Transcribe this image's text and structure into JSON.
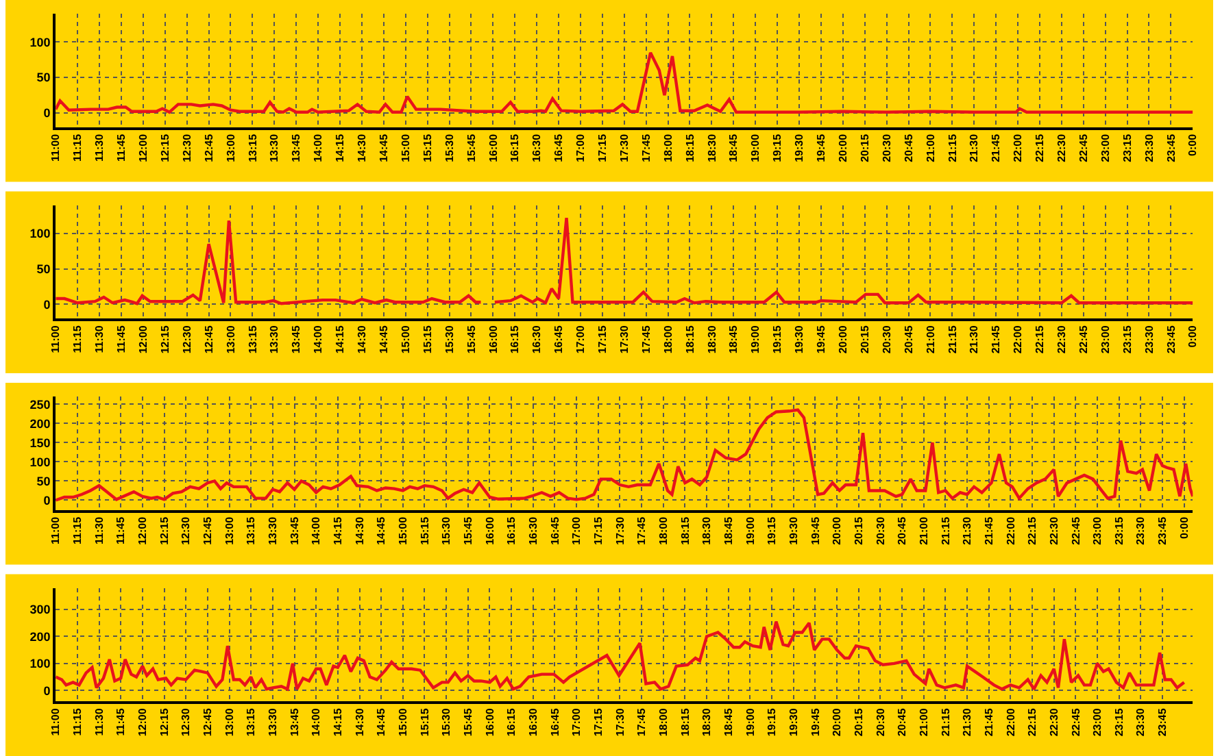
{
  "chart_data": [
    {
      "type": "line",
      "color": "#e8121c",
      "grid": true,
      "xlim": [
        11,
        24
      ],
      "ylim": [
        -20,
        140
      ],
      "yticks": [
        0,
        50,
        100
      ],
      "xticks": [
        {
          "value": 11,
          "label": "11:00"
        },
        {
          "value": 11.25,
          "label": "11:15"
        },
        {
          "value": 11.5,
          "label": "11:30"
        },
        {
          "value": 11.75,
          "label": "11:45"
        },
        {
          "value": 12,
          "label": "12:00"
        },
        {
          "value": 12.25,
          "label": "12:15"
        },
        {
          "value": 12.5,
          "label": "12:30"
        },
        {
          "value": 12.75,
          "label": "12:45"
        },
        {
          "value": 13,
          "label": "13:00"
        },
        {
          "value": 13.25,
          "label": "13:15"
        },
        {
          "value": 13.5,
          "label": "13:30"
        },
        {
          "value": 13.75,
          "label": "13:45"
        },
        {
          "value": 14,
          "label": "14:00"
        },
        {
          "value": 14.25,
          "label": "14:15"
        },
        {
          "value": 14.5,
          "label": "14:30"
        },
        {
          "value": 14.75,
          "label": "14:45"
        },
        {
          "value": 15,
          "label": "15:00"
        },
        {
          "value": 15.25,
          "label": "15:15"
        },
        {
          "value": 15.5,
          "label": "15:30"
        },
        {
          "value": 15.75,
          "label": "15:45"
        },
        {
          "value": 16,
          "label": "16:00"
        },
        {
          "value": 16.25,
          "label": "16:15"
        },
        {
          "value": 16.5,
          "label": "16:30"
        },
        {
          "value": 16.75,
          "label": "16:45"
        },
        {
          "value": 17,
          "label": "17:00"
        },
        {
          "value": 17.25,
          "label": "17:15"
        },
        {
          "value": 17.5,
          "label": "17:30"
        },
        {
          "value": 17.75,
          "label": "17:45"
        },
        {
          "value": 18,
          "label": "18:00"
        },
        {
          "value": 18.25,
          "label": "18:15"
        },
        {
          "value": 18.5,
          "label": "18:30"
        },
        {
          "value": 18.75,
          "label": "18:45"
        },
        {
          "value": 19,
          "label": "19:00"
        },
        {
          "value": 19.25,
          "label": "19:15"
        },
        {
          "value": 19.5,
          "label": "19:30"
        },
        {
          "value": 19.75,
          "label": "19:45"
        },
        {
          "value": 20,
          "label": "20:00"
        },
        {
          "value": 20.25,
          "label": "20:15"
        },
        {
          "value": 20.5,
          "label": "20:30"
        },
        {
          "value": 20.75,
          "label": "20:45"
        },
        {
          "value": 21,
          "label": "21:00"
        },
        {
          "value": 21.25,
          "label": "21:15"
        },
        {
          "value": 21.5,
          "label": "21:30"
        },
        {
          "value": 21.75,
          "label": "21:45"
        },
        {
          "value": 22,
          "label": "22:00"
        },
        {
          "value": 22.25,
          "label": "22:15"
        },
        {
          "value": 22.5,
          "label": "22:30"
        },
        {
          "value": 22.75,
          "label": "22:45"
        },
        {
          "value": 23,
          "label": "23:00"
        },
        {
          "value": 23.25,
          "label": "23:15"
        },
        {
          "value": 23.5,
          "label": "23:30"
        },
        {
          "value": 23.75,
          "label": "23:45"
        },
        {
          "value": 24,
          "label": "0:00"
        }
      ],
      "x": [
        11,
        11.05,
        11.15,
        11.4,
        11.6,
        11.7,
        11.8,
        11.87,
        12.15,
        12.22,
        12.3,
        12.4,
        12.55,
        12.65,
        12.8,
        12.9,
        13,
        13.1,
        13.38,
        13.45,
        13.53,
        13.6,
        13.67,
        13.75,
        13.88,
        13.93,
        14,
        14.35,
        14.45,
        14.55,
        14.7,
        14.77,
        14.85,
        14.95,
        15.02,
        15.12,
        15.4,
        15.65,
        15.8,
        16.1,
        16.2,
        16.28,
        16.45,
        16.55,
        16.6,
        16.68,
        16.78,
        17,
        17.38,
        17.48,
        17.57,
        17.65,
        17.8,
        17.9,
        17.96,
        18.05,
        18.14,
        18.3,
        18.45,
        18.6,
        18.7,
        18.78,
        19.5,
        20,
        20.5,
        21,
        21.5,
        21.98,
        22.02,
        22.1,
        23,
        24
      ],
      "values": [
        5,
        17,
        4,
        5,
        5,
        8,
        8,
        2,
        2,
        6,
        1,
        12,
        12,
        10,
        12,
        10,
        4,
        2,
        2,
        15,
        2,
        1,
        6,
        1,
        1,
        5,
        1,
        3,
        12,
        2,
        1,
        12,
        1,
        1,
        23,
        5,
        5,
        3,
        2,
        2,
        15,
        2,
        2,
        3,
        2,
        20,
        3,
        2,
        3,
        12,
        2,
        2,
        85,
        60,
        25,
        80,
        3,
        3,
        11,
        2,
        19,
        1,
        1,
        2,
        1,
        2,
        1,
        1,
        6,
        1,
        1,
        1
      ]
    },
    {
      "type": "line",
      "color": "#e8121c",
      "grid": true,
      "xlim": [
        11,
        24
      ],
      "ylim": [
        -20,
        140
      ],
      "yticks": [
        0,
        50,
        100
      ],
      "xticks": [
        {
          "value": 11,
          "label": "11:00"
        },
        {
          "value": 11.25,
          "label": "11:15"
        },
        {
          "value": 11.5,
          "label": "11:30"
        },
        {
          "value": 11.75,
          "label": "11:45"
        },
        {
          "value": 12,
          "label": "12:00"
        },
        {
          "value": 12.25,
          "label": "12:15"
        },
        {
          "value": 12.5,
          "label": "12:30"
        },
        {
          "value": 12.75,
          "label": "12:45"
        },
        {
          "value": 13,
          "label": "13:00"
        },
        {
          "value": 13.25,
          "label": "13:15"
        },
        {
          "value": 13.5,
          "label": "13:30"
        },
        {
          "value": 13.75,
          "label": "13:45"
        },
        {
          "value": 14,
          "label": "14:00"
        },
        {
          "value": 14.25,
          "label": "14:15"
        },
        {
          "value": 14.5,
          "label": "14:30"
        },
        {
          "value": 14.75,
          "label": "14:45"
        },
        {
          "value": 15,
          "label": "15:00"
        },
        {
          "value": 15.25,
          "label": "15:15"
        },
        {
          "value": 15.5,
          "label": "15:30"
        },
        {
          "value": 15.75,
          "label": "15:45"
        },
        {
          "value": 16,
          "label": "16:00"
        },
        {
          "value": 16.25,
          "label": "16:15"
        },
        {
          "value": 16.5,
          "label": "16:30"
        },
        {
          "value": 16.75,
          "label": "16:45"
        },
        {
          "value": 17,
          "label": "17:00"
        },
        {
          "value": 17.25,
          "label": "17:15"
        },
        {
          "value": 17.5,
          "label": "17:30"
        },
        {
          "value": 17.75,
          "label": "17:45"
        },
        {
          "value": 18,
          "label": "18:00"
        },
        {
          "value": 18.25,
          "label": "18:15"
        },
        {
          "value": 18.5,
          "label": "18:30"
        },
        {
          "value": 18.75,
          "label": "18:45"
        },
        {
          "value": 19,
          "label": "19:00"
        },
        {
          "value": 19.25,
          "label": "19:15"
        },
        {
          "value": 19.5,
          "label": "19:30"
        },
        {
          "value": 19.75,
          "label": "19:45"
        },
        {
          "value": 20,
          "label": "20:00"
        },
        {
          "value": 20.25,
          "label": "20:15"
        },
        {
          "value": 20.5,
          "label": "20:30"
        },
        {
          "value": 20.75,
          "label": "20:45"
        },
        {
          "value": 21,
          "label": "21:00"
        },
        {
          "value": 21.25,
          "label": "21:15"
        },
        {
          "value": 21.5,
          "label": "21:30"
        },
        {
          "value": 21.75,
          "label": "21:45"
        },
        {
          "value": 22,
          "label": "22:00"
        },
        {
          "value": 22.25,
          "label": "22:15"
        },
        {
          "value": 22.5,
          "label": "22:30"
        },
        {
          "value": 22.75,
          "label": "22:45"
        },
        {
          "value": 23,
          "label": "23:00"
        },
        {
          "value": 23.25,
          "label": "23:15"
        },
        {
          "value": 23.5,
          "label": "23:30"
        },
        {
          "value": 23.75,
          "label": "23:45"
        },
        {
          "value": 24,
          "label": "0:00"
        }
      ],
      "x": [
        11,
        11.1,
        11.25,
        11.45,
        11.55,
        11.65,
        11.79,
        11.88,
        11.93,
        11.99,
        12.08,
        12.45,
        12.57,
        12.65,
        12.75,
        12.92,
        12.98,
        13.06,
        13.4,
        13.49,
        13.58,
        14.05,
        14.2,
        14.4,
        14.5,
        14.65,
        14.78,
        14.88,
        15.2,
        15.3,
        15.45,
        15.62,
        15.72,
        15.8,
        15.86,
        15.87,
        16.01,
        16.02,
        16.2,
        16.32,
        16.45,
        16.51,
        16.6,
        16.67,
        16.75,
        16.84,
        16.91,
        17.6,
        17.72,
        17.82,
        18.1,
        18.19,
        18.3,
        18.43,
        18.6,
        19.1,
        19.24,
        19.33,
        19.7,
        19.75,
        20.15,
        20.26,
        20.4,
        20.48,
        20.75,
        20.86,
        20.95,
        21.5,
        22.5,
        22.61,
        22.7,
        24
      ],
      "values": [
        8,
        8,
        2,
        4,
        10,
        2,
        6,
        3,
        1,
        12,
        4,
        4,
        13,
        5,
        85,
        2,
        118,
        3,
        3,
        5,
        1,
        6,
        6,
        2,
        7,
        2,
        6,
        3,
        3,
        8,
        3,
        3,
        12,
        3,
        3,
        null,
        null,
        3,
        5,
        12,
        3,
        8,
        2,
        22,
        8,
        122,
        3,
        3,
        17,
        4,
        3,
        8,
        2,
        4,
        3,
        3,
        17,
        3,
        3,
        5,
        3,
        14,
        14,
        2,
        2,
        13,
        3,
        3,
        2,
        12,
        2,
        2
      ]
    },
    {
      "type": "line",
      "color": "#e8121c",
      "grid": true,
      "xlim": [
        11,
        24.1
      ],
      "ylim": [
        -25,
        270
      ],
      "yticks": [
        0,
        50,
        100,
        150,
        200,
        250
      ],
      "xticks": [
        {
          "value": 11,
          "label": "11:00"
        },
        {
          "value": 11.25,
          "label": "11:15"
        },
        {
          "value": 11.5,
          "label": "11:30"
        },
        {
          "value": 11.75,
          "label": "11:45"
        },
        {
          "value": 12,
          "label": "12:00"
        },
        {
          "value": 12.25,
          "label": "12:15"
        },
        {
          "value": 12.5,
          "label": "12:30"
        },
        {
          "value": 12.75,
          "label": "12:45"
        },
        {
          "value": 13,
          "label": "13:00"
        },
        {
          "value": 13.25,
          "label": "13:15"
        },
        {
          "value": 13.5,
          "label": "13:30"
        },
        {
          "value": 13.75,
          "label": "13:45"
        },
        {
          "value": 14,
          "label": "14:00"
        },
        {
          "value": 14.25,
          "label": "14:15"
        },
        {
          "value": 14.5,
          "label": "14:30"
        },
        {
          "value": 14.75,
          "label": "14:45"
        },
        {
          "value": 15,
          "label": "15:00"
        },
        {
          "value": 15.25,
          "label": "15:15"
        },
        {
          "value": 15.5,
          "label": "15:30"
        },
        {
          "value": 15.75,
          "label": "15:45"
        },
        {
          "value": 16,
          "label": "16:00"
        },
        {
          "value": 16.25,
          "label": "16:15"
        },
        {
          "value": 16.5,
          "label": "16:30"
        },
        {
          "value": 16.75,
          "label": "16:45"
        },
        {
          "value": 17,
          "label": "17:00"
        },
        {
          "value": 17.25,
          "label": "17:15"
        },
        {
          "value": 17.5,
          "label": "17:30"
        },
        {
          "value": 17.75,
          "label": "17:45"
        },
        {
          "value": 18,
          "label": "18:00"
        },
        {
          "value": 18.25,
          "label": "18:15"
        },
        {
          "value": 18.5,
          "label": "18:30"
        },
        {
          "value": 18.75,
          "label": "18:45"
        },
        {
          "value": 19,
          "label": "19:00"
        },
        {
          "value": 19.25,
          "label": "19:15"
        },
        {
          "value": 19.5,
          "label": "19:30"
        },
        {
          "value": 19.75,
          "label": "19:45"
        },
        {
          "value": 20,
          "label": "20:00"
        },
        {
          "value": 20.25,
          "label": "20:15"
        },
        {
          "value": 20.5,
          "label": "20:30"
        },
        {
          "value": 20.75,
          "label": "20:45"
        },
        {
          "value": 21,
          "label": "21:00"
        },
        {
          "value": 21.25,
          "label": "21:15"
        },
        {
          "value": 21.5,
          "label": "21:30"
        },
        {
          "value": 21.75,
          "label": "21:45"
        },
        {
          "value": 22,
          "label": "22:00"
        },
        {
          "value": 22.25,
          "label": "22:15"
        },
        {
          "value": 22.5,
          "label": "22:30"
        },
        {
          "value": 22.75,
          "label": "22:45"
        },
        {
          "value": 23,
          "label": "23:00"
        },
        {
          "value": 23.25,
          "label": "23:15"
        },
        {
          "value": 23.5,
          "label": "23:30"
        },
        {
          "value": 23.75,
          "label": "23:45"
        },
        {
          "value": 24,
          "label": "0:00"
        }
      ],
      "x": [
        11,
        11.1,
        11.2,
        11.3,
        11.4,
        11.5,
        11.6,
        11.7,
        11.8,
        11.9,
        12,
        12.1,
        12.17,
        12.25,
        12.35,
        12.45,
        12.55,
        12.65,
        12.75,
        12.83,
        12.9,
        12.97,
        13.05,
        13.2,
        13.3,
        13.42,
        13.5,
        13.58,
        13.67,
        13.75,
        13.83,
        13.92,
        14,
        14.08,
        14.17,
        14.27,
        14.4,
        14.47,
        14.6,
        14.7,
        14.8,
        14.9,
        15,
        15.08,
        15.17,
        15.25,
        15.35,
        15.45,
        15.52,
        15.6,
        15.7,
        15.8,
        15.88,
        16,
        16.1,
        16.4,
        16.5,
        16.6,
        16.7,
        16.8,
        16.9,
        17,
        17.1,
        17.2,
        17.28,
        17.4,
        17.5,
        17.6,
        17.7,
        17.85,
        17.95,
        18.05,
        18.1,
        18.17,
        18.25,
        18.33,
        18.42,
        18.5,
        18.6,
        18.72,
        18.85,
        18.95,
        19.1,
        19.2,
        19.3,
        19.45,
        19.55,
        19.62,
        19.78,
        19.85,
        19.95,
        20.03,
        20.1,
        20.22,
        20.3,
        20.37,
        20.55,
        20.68,
        20.75,
        20.85,
        20.92,
        21.02,
        21.1,
        21.17,
        21.25,
        21.33,
        21.42,
        21.5,
        21.58,
        21.67,
        21.78,
        21.87,
        21.95,
        22.02,
        22.1,
        22.2,
        22.3,
        22.4,
        22.5,
        22.55,
        22.65,
        22.75,
        22.85,
        22.95,
        23.05,
        23.12,
        23.2,
        23.27,
        23.35,
        23.45,
        23.52,
        23.6,
        23.68,
        23.75,
        23.8,
        23.88,
        23.95,
        24.02,
        24.07,
        24.1
      ],
      "values": [
        0,
        8,
        8,
        15,
        25,
        38,
        20,
        2,
        12,
        22,
        10,
        5,
        8,
        2,
        18,
        22,
        35,
        30,
        45,
        50,
        30,
        45,
        35,
        35,
        5,
        5,
        28,
        22,
        45,
        28,
        50,
        40,
        20,
        35,
        30,
        40,
        62,
        38,
        35,
        25,
        32,
        30,
        25,
        35,
        30,
        38,
        35,
        25,
        5,
        18,
        28,
        20,
        45,
        8,
        3,
        5,
        12,
        20,
        10,
        20,
        5,
        2,
        5,
        15,
        55,
        55,
        40,
        35,
        40,
        40,
        95,
        25,
        15,
        88,
        45,
        55,
        40,
        60,
        130,
        110,
        105,
        120,
        185,
        215,
        230,
        232,
        235,
        215,
        15,
        18,
        45,
        25,
        40,
        40,
        175,
        25,
        25,
        10,
        15,
        55,
        25,
        25,
        150,
        20,
        25,
        5,
        20,
        15,
        35,
        20,
        45,
        120,
        45,
        35,
        5,
        30,
        45,
        55,
        80,
        10,
        45,
        55,
        65,
        55,
        25,
        5,
        10,
        155,
        75,
        70,
        80,
        25,
        120,
        90,
        85,
        80,
        10,
        95,
        30,
        10
      ]
    },
    {
      "type": "line",
      "color": "#e8121c",
      "grid": true,
      "xlim": [
        11,
        24.1
      ],
      "ylim": [
        -40,
        380
      ],
      "yticks": [
        0,
        100,
        200,
        300
      ],
      "xticks": [
        {
          "value": 11,
          "label": "11:00"
        },
        {
          "value": 11.25,
          "label": "11:15"
        },
        {
          "value": 11.5,
          "label": "11:30"
        },
        {
          "value": 11.75,
          "label": "11:45"
        },
        {
          "value": 12,
          "label": "12:00"
        },
        {
          "value": 12.25,
          "label": "12:15"
        },
        {
          "value": 12.5,
          "label": "12:30"
        },
        {
          "value": 12.75,
          "label": "12:45"
        },
        {
          "value": 13,
          "label": "13:00"
        },
        {
          "value": 13.25,
          "label": "13:15"
        },
        {
          "value": 13.5,
          "label": "13:30"
        },
        {
          "value": 13.75,
          "label": "13:45"
        },
        {
          "value": 14,
          "label": "14:00"
        },
        {
          "value": 14.25,
          "label": "14:15"
        },
        {
          "value": 14.5,
          "label": "14:30"
        },
        {
          "value": 14.75,
          "label": "14:45"
        },
        {
          "value": 15,
          "label": "15:00"
        },
        {
          "value": 15.25,
          "label": "15:15"
        },
        {
          "value": 15.5,
          "label": "15:30"
        },
        {
          "value": 15.75,
          "label": "15:45"
        },
        {
          "value": 16,
          "label": "16:00"
        },
        {
          "value": 16.25,
          "label": "16:15"
        },
        {
          "value": 16.5,
          "label": "16:30"
        },
        {
          "value": 16.75,
          "label": "16:45"
        },
        {
          "value": 17,
          "label": "17:00"
        },
        {
          "value": 17.25,
          "label": "17:15"
        },
        {
          "value": 17.5,
          "label": "17:30"
        },
        {
          "value": 17.75,
          "label": "17:45"
        },
        {
          "value": 18,
          "label": "18:00"
        },
        {
          "value": 18.25,
          "label": "18:15"
        },
        {
          "value": 18.5,
          "label": "18:30"
        },
        {
          "value": 18.75,
          "label": "18:45"
        },
        {
          "value": 19,
          "label": "19:00"
        },
        {
          "value": 19.25,
          "label": "19:15"
        },
        {
          "value": 19.5,
          "label": "19:30"
        },
        {
          "value": 19.75,
          "label": "19:45"
        },
        {
          "value": 20,
          "label": "20:00"
        },
        {
          "value": 20.25,
          "label": "20:15"
        },
        {
          "value": 20.5,
          "label": "20:30"
        },
        {
          "value": 20.75,
          "label": "20:45"
        },
        {
          "value": 21,
          "label": "21:00"
        },
        {
          "value": 21.25,
          "label": "21:15"
        },
        {
          "value": 21.5,
          "label": "21:30"
        },
        {
          "value": 21.75,
          "label": "21:45"
        },
        {
          "value": 22,
          "label": "22:00"
        },
        {
          "value": 22.25,
          "label": "22:15"
        },
        {
          "value": 22.5,
          "label": "22:30"
        },
        {
          "value": 22.75,
          "label": "22:45"
        },
        {
          "value": 23,
          "label": "23:00"
        },
        {
          "value": 23.25,
          "label": "23:15"
        },
        {
          "value": 23.5,
          "label": "23:30"
        },
        {
          "value": 23.75,
          "label": "23:45"
        }
      ],
      "x": [
        11,
        11.07,
        11.12,
        11.2,
        11.27,
        11.35,
        11.42,
        11.47,
        11.55,
        11.62,
        11.68,
        11.75,
        11.8,
        11.87,
        11.93,
        12,
        12.05,
        12.12,
        12.18,
        12.27,
        12.33,
        12.4,
        12.5,
        12.6,
        12.68,
        12.75,
        12.85,
        12.92,
        12.98,
        13.05,
        13.12,
        13.18,
        13.25,
        13.3,
        13.37,
        13.43,
        13.5,
        13.6,
        13.67,
        13.73,
        13.78,
        13.85,
        13.92,
        14,
        14.05,
        14.12,
        14.2,
        14.25,
        14.33,
        14.4,
        14.48,
        14.55,
        14.62,
        14.7,
        14.8,
        14.87,
        14.95,
        15.1,
        15.2,
        15.35,
        15.45,
        15.52,
        15.6,
        15.67,
        15.75,
        15.82,
        15.9,
        16,
        16.07,
        16.12,
        16.2,
        16.27,
        16.35,
        16.45,
        16.6,
        16.74,
        16.85,
        16.92,
        17.35,
        17.49,
        17.73,
        17.8,
        17.9,
        17.97,
        18.06,
        18.15,
        18.28,
        18.37,
        18.42,
        18.5,
        18.63,
        18.72,
        18.81,
        18.88,
        18.94,
        19.03,
        19.12,
        19.16,
        19.23,
        19.3,
        19.38,
        19.44,
        19.52,
        19.6,
        19.68,
        19.74,
        19.83,
        19.91,
        20,
        20.09,
        20.14,
        20.22,
        20.36,
        20.44,
        20.53,
        20.66,
        20.8,
        20.89,
        21.02,
        21.06,
        21.15,
        21.24,
        21.37,
        21.46,
        21.5,
        21.59,
        21.68,
        21.81,
        21.9,
        22,
        22.1,
        22.2,
        22.27,
        22.35,
        22.42,
        22.5,
        22.55,
        22.62,
        22.7,
        22.78,
        22.85,
        22.92,
        23,
        23.07,
        23.13,
        23.22,
        23.3,
        23.37,
        23.45,
        23.55,
        23.65,
        23.72,
        23.78,
        23.85,
        23.92,
        24
      ],
      "values": [
        50,
        40,
        20,
        30,
        20,
        65,
        85,
        10,
        45,
        115,
        35,
        45,
        115,
        60,
        50,
        90,
        55,
        80,
        40,
        45,
        20,
        45,
        40,
        75,
        70,
        65,
        15,
        40,
        165,
        40,
        40,
        20,
        50,
        10,
        40,
        5,
        10,
        15,
        5,
        100,
        5,
        45,
        35,
        80,
        80,
        20,
        90,
        85,
        130,
        70,
        120,
        110,
        50,
        40,
        75,
        105,
        80,
        80,
        75,
        10,
        30,
        30,
        65,
        35,
        55,
        35,
        35,
        30,
        50,
        15,
        45,
        5,
        15,
        50,
        60,
        60,
        30,
        50,
        130,
        55,
        175,
        25,
        30,
        5,
        15,
        90,
        95,
        120,
        110,
        200,
        215,
        190,
        160,
        160,
        180,
        165,
        160,
        235,
        150,
        255,
        170,
        165,
        215,
        215,
        250,
        150,
        190,
        190,
        150,
        120,
        120,
        165,
        155,
        110,
        95,
        100,
        110,
        60,
        25,
        80,
        20,
        10,
        20,
        10,
        90,
        70,
        50,
        20,
        5,
        20,
        10,
        40,
        5,
        55,
        30,
        80,
        10,
        190,
        30,
        55,
        20,
        20,
        100,
        70,
        80,
        30,
        10,
        65,
        20,
        20,
        20,
        140,
        40,
        40,
        10,
        30
      ]
    }
  ]
}
